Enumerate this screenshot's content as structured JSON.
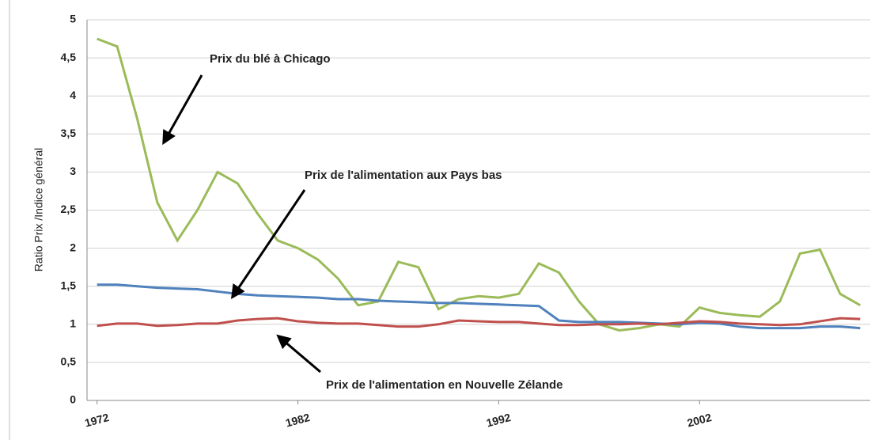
{
  "chart_data": {
    "type": "line",
    "y_label": "Ratio Prix /Indice général",
    "x": [
      1972,
      1973,
      1974,
      1975,
      1976,
      1977,
      1978,
      1979,
      1980,
      1981,
      1982,
      1983,
      1984,
      1985,
      1986,
      1987,
      1988,
      1989,
      1990,
      1991,
      1992,
      1993,
      1994,
      1995,
      1996,
      1997,
      1998,
      1999,
      2000,
      2001,
      2002,
      2003,
      2004,
      2005,
      2006,
      2007,
      2008,
      2009,
      2010
    ],
    "xlim": [
      1971.5,
      2010.5
    ],
    "xticks": [
      1972,
      1982,
      1992,
      2002
    ],
    "ylim": [
      0,
      5
    ],
    "yticks": [
      0,
      {
        "value": 0.5,
        "label": "0,5"
      },
      1,
      {
        "value": 1.5,
        "label": "1,5"
      },
      2,
      {
        "value": 2.5,
        "label": "2,5"
      },
      3,
      {
        "value": 3.5,
        "label": "3,5"
      },
      4,
      {
        "value": 4.5,
        "label": "4,5"
      },
      5
    ],
    "grid": true,
    "series": [
      {
        "name": "Prix du blé à Chicago",
        "color": "#9bbb59",
        "values": [
          4.75,
          4.65,
          3.7,
          2.6,
          2.1,
          2.5,
          3.0,
          2.85,
          2.45,
          2.1,
          2.0,
          1.85,
          1.6,
          1.25,
          1.3,
          1.82,
          1.75,
          1.2,
          1.33,
          1.37,
          1.35,
          1.4,
          1.8,
          1.68,
          1.3,
          1.0,
          0.92,
          0.95,
          1.0,
          0.97,
          1.22,
          1.15,
          1.12,
          1.1,
          1.3,
          1.93,
          1.98,
          1.4,
          1.25
        ]
      },
      {
        "name": "Prix de l'alimentation aux Pays bas",
        "color": "#4f81bd",
        "values": [
          1.52,
          1.52,
          1.5,
          1.48,
          1.47,
          1.46,
          1.43,
          1.4,
          1.38,
          1.37,
          1.36,
          1.35,
          1.33,
          1.33,
          1.31,
          1.3,
          1.29,
          1.28,
          1.28,
          1.27,
          1.26,
          1.25,
          1.24,
          1.05,
          1.03,
          1.03,
          1.03,
          1.02,
          1.01,
          1.0,
          1.02,
          1.01,
          0.97,
          0.95,
          0.95,
          0.95,
          0.97,
          0.97,
          0.95
        ]
      },
      {
        "name": "Prix de l'alimentation en Nouvelle Zélande",
        "color": "#c0504d",
        "values": [
          0.98,
          1.01,
          1.01,
          0.98,
          0.99,
          1.01,
          1.01,
          1.05,
          1.07,
          1.08,
          1.04,
          1.02,
          1.01,
          1.01,
          0.99,
          0.97,
          0.97,
          1.0,
          1.05,
          1.04,
          1.03,
          1.03,
          1.01,
          0.99,
          0.99,
          1.0,
          1.0,
          1.01,
          1.0,
          1.02,
          1.04,
          1.03,
          1.01,
          1.0,
          0.99,
          1.0,
          1.04,
          1.08,
          1.07
        ]
      }
    ]
  }
}
